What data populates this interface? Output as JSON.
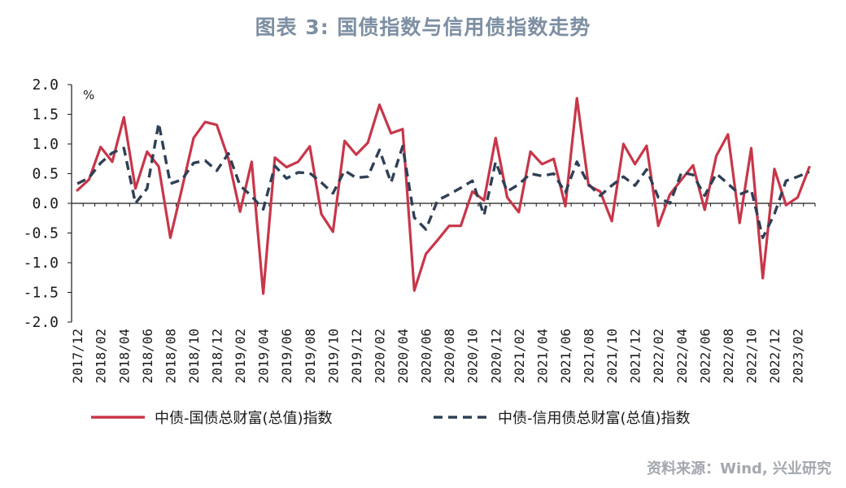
{
  "title": "图表 3:  国债指数与信用债指数走势",
  "source": "资料来源：Wind, 兴业研究",
  "chart_data": {
    "type": "line",
    "ylabel": "%",
    "ylim": [
      -2.0,
      2.0
    ],
    "yticks": [
      "2.0",
      "1.5",
      "1.0",
      "0.5",
      "0.0",
      "-0.5",
      "-1.0",
      "-1.5",
      "-2.0"
    ],
    "x": [
      "2017/12",
      "2018/01",
      "2018/02",
      "2018/03",
      "2018/04",
      "2018/05",
      "2018/06",
      "2018/07",
      "2018/08",
      "2018/09",
      "2018/10",
      "2018/11",
      "2018/12",
      "2019/01",
      "2019/02",
      "2019/03",
      "2019/04",
      "2019/05",
      "2019/06",
      "2019/07",
      "2019/08",
      "2019/09",
      "2019/10",
      "2019/11",
      "2019/12",
      "2020/01",
      "2020/02",
      "2020/03",
      "2020/04",
      "2020/05",
      "2020/06",
      "2020/07",
      "2020/08",
      "2020/09",
      "2020/10",
      "2020/11",
      "2020/12",
      "2021/01",
      "2021/02",
      "2021/03",
      "2021/04",
      "2021/05",
      "2021/06",
      "2021/07",
      "2021/08",
      "2021/09",
      "2021/10",
      "2021/11",
      "2021/12",
      "2022/01",
      "2022/02",
      "2022/03",
      "2022/04",
      "2022/05",
      "2022/06",
      "2022/07",
      "2022/08",
      "2022/09",
      "2022/10",
      "2022/11",
      "2022/12",
      "2023/01",
      "2023/02",
      "2023/03"
    ],
    "xtick_labels": [
      "2017/12",
      "2018/02",
      "2018/04",
      "2018/06",
      "2018/08",
      "2018/10",
      "2018/12",
      "2019/02",
      "2019/04",
      "2019/06",
      "2019/08",
      "2019/10",
      "2019/12",
      "2020/02",
      "2020/04",
      "2020/06",
      "2020/08",
      "2020/10",
      "2020/12",
      "2021/02",
      "2021/04",
      "2021/06",
      "2021/08",
      "2021/10",
      "2021/12",
      "2022/02",
      "2022/04",
      "2022/06",
      "2022/08",
      "2022/10",
      "2022/12",
      "2023/02"
    ],
    "series": [
      {
        "name": "中债-国债总财富(总值)指数",
        "color": "#c8364a",
        "style": "solid",
        "values": [
          0.22,
          0.4,
          0.95,
          0.7,
          1.45,
          0.25,
          0.87,
          0.62,
          -0.58,
          0.25,
          1.1,
          1.37,
          1.32,
          0.75,
          -0.14,
          0.7,
          -1.52,
          0.77,
          0.61,
          0.7,
          0.96,
          -0.18,
          -0.48,
          1.05,
          0.82,
          1.02,
          1.66,
          1.18,
          1.25,
          -1.47,
          -0.85,
          -0.62,
          -0.38,
          -0.38,
          0.2,
          0.05,
          1.1,
          0.1,
          -0.15,
          0.87,
          0.66,
          0.75,
          -0.05,
          1.77,
          0.3,
          0.2,
          -0.3,
          1.0,
          0.66,
          0.97,
          -0.38,
          0.15,
          0.4,
          0.64,
          -0.11,
          0.8,
          1.16,
          -0.33,
          0.93,
          -1.26,
          0.58,
          -0.03,
          0.1,
          0.61
        ]
      },
      {
        "name": "中债-信用债总财富(总值)指数",
        "color": "#2f4056",
        "style": "dashed",
        "values": [
          0.33,
          0.43,
          0.68,
          0.85,
          0.93,
          0.0,
          0.25,
          1.35,
          0.33,
          0.4,
          0.68,
          0.72,
          0.55,
          0.84,
          0.3,
          0.12,
          -0.1,
          0.63,
          0.42,
          0.52,
          0.51,
          0.35,
          0.17,
          0.55,
          0.43,
          0.45,
          0.9,
          0.35,
          0.96,
          -0.24,
          -0.44,
          0.05,
          0.15,
          0.26,
          0.38,
          -0.2,
          0.7,
          0.2,
          0.32,
          0.5,
          0.46,
          0.5,
          0.18,
          0.7,
          0.32,
          0.13,
          0.3,
          0.45,
          0.3,
          0.57,
          0.1,
          0.0,
          0.52,
          0.48,
          0.13,
          0.5,
          0.33,
          0.15,
          0.23,
          -0.58,
          -0.18,
          0.38,
          0.45,
          0.53
        ]
      }
    ],
    "legend_position": "bottom",
    "grid": false
  }
}
